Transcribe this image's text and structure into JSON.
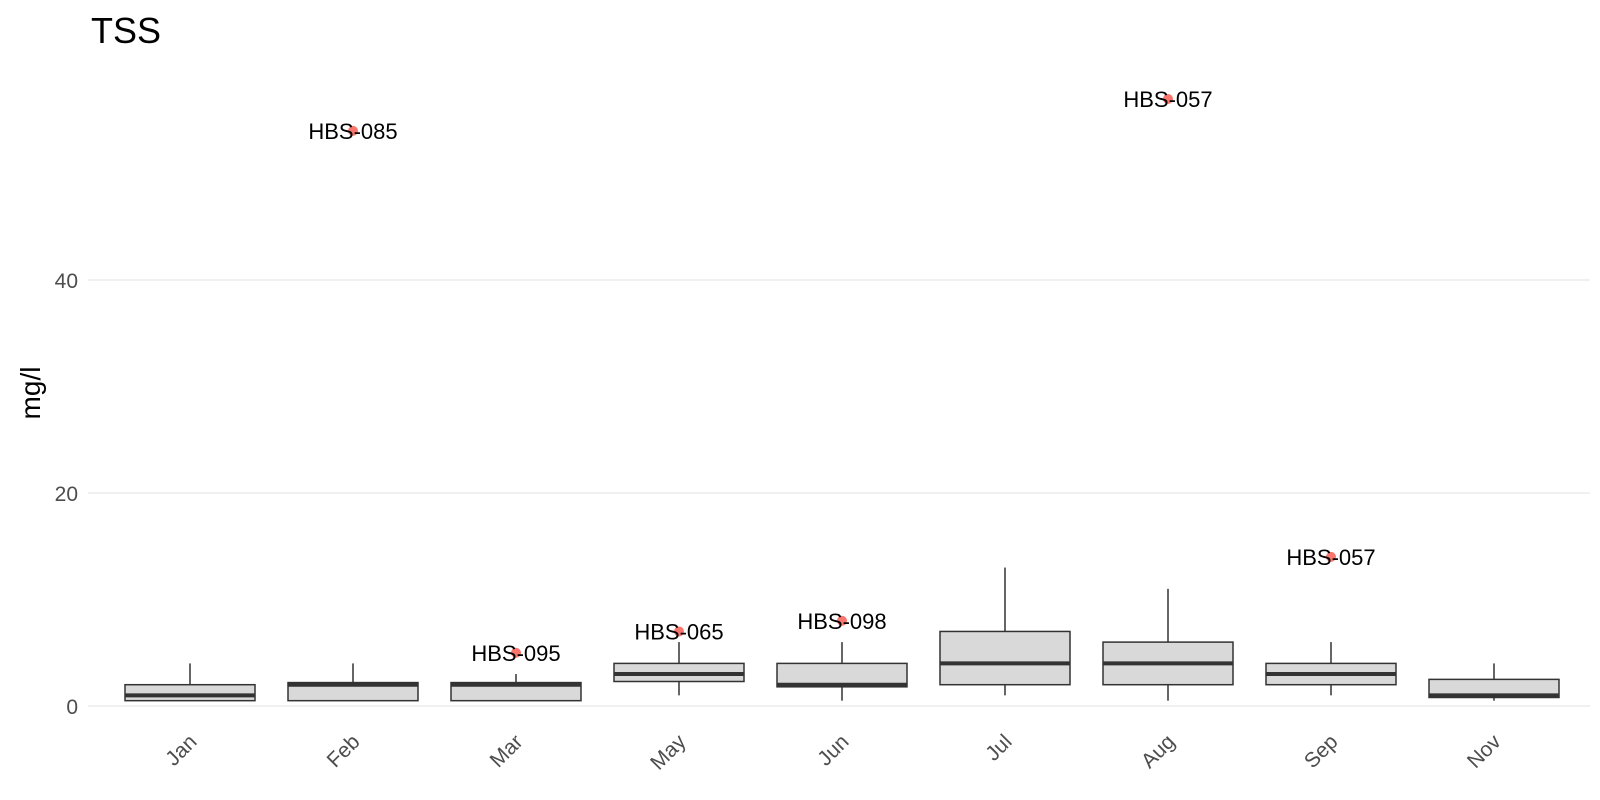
{
  "chart_data": {
    "type": "box",
    "title": "TSS",
    "xlabel": "",
    "ylabel": "mg/l",
    "ylim": [
      -0.8,
      63
    ],
    "yticks": [
      0,
      20,
      40
    ],
    "grid": true,
    "legend": "none",
    "categories": [
      "Jan",
      "Feb",
      "Mar",
      "May",
      "Jun",
      "Jul",
      "Aug",
      "Sep",
      "Nov"
    ],
    "boxes": [
      {
        "category": "Jan",
        "whisker_low": 0.5,
        "q1": 0.5,
        "median": 1,
        "q3": 2,
        "whisker_high": 4
      },
      {
        "category": "Feb",
        "whisker_low": 0.5,
        "q1": 0.5,
        "median": 2,
        "q3": 2.2,
        "whisker_high": 4
      },
      {
        "category": "Mar",
        "whisker_low": 0.5,
        "q1": 0.5,
        "median": 2,
        "q3": 2.2,
        "whisker_high": 3
      },
      {
        "category": "May",
        "whisker_low": 1,
        "q1": 2.3,
        "median": 3,
        "q3": 4,
        "whisker_high": 6
      },
      {
        "category": "Jun",
        "whisker_low": 0.5,
        "q1": 1.8,
        "median": 2,
        "q3": 4,
        "whisker_high": 6
      },
      {
        "category": "Jul",
        "whisker_low": 1,
        "q1": 2,
        "median": 4,
        "q3": 7,
        "whisker_high": 13
      },
      {
        "category": "Aug",
        "whisker_low": 0.5,
        "q1": 2,
        "median": 4,
        "q3": 6,
        "whisker_high": 11
      },
      {
        "category": "Sep",
        "whisker_low": 1,
        "q1": 2,
        "median": 3,
        "q3": 4,
        "whisker_high": 6
      },
      {
        "category": "Nov",
        "whisker_low": 0.5,
        "q1": 0.8,
        "median": 1,
        "q3": 2.5,
        "whisker_high": 4
      }
    ],
    "outliers": [
      {
        "category": "Feb",
        "value": 54,
        "label": "HBS-085"
      },
      {
        "category": "Mar",
        "value": 5,
        "label": "HBS-095"
      },
      {
        "category": "May",
        "value": 7,
        "label": "HBS-065"
      },
      {
        "category": "Jun",
        "value": 8,
        "label": "HBS-098"
      },
      {
        "category": "Aug",
        "value": 57,
        "label": "HBS-057"
      },
      {
        "category": "Sep",
        "value": 14,
        "label": "HBS-057"
      }
    ],
    "colors": {
      "box_fill": "#d9d9d9",
      "box_line": "#333333",
      "outlier": "#f8766d",
      "grid": "#ebebeb",
      "tick_text": "#4d4d4d"
    }
  }
}
